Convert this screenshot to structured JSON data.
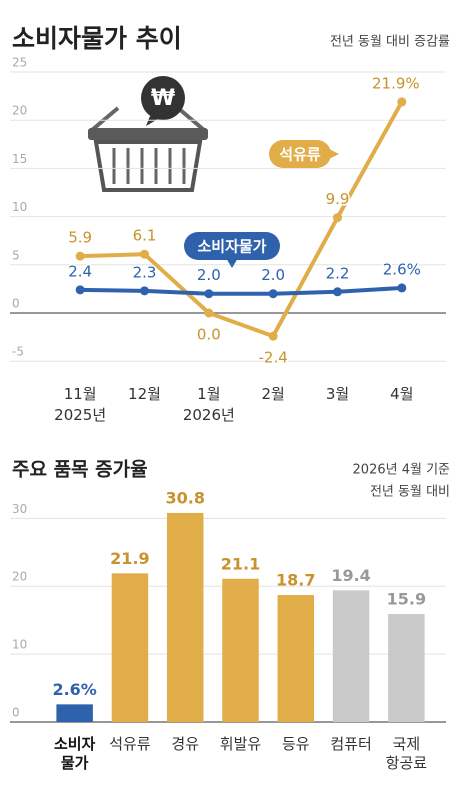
{
  "chart_data": [
    {
      "type": "line",
      "title": "소비자물가 추이",
      "subtitle": "전년 동월 대비 증감률",
      "categories": [
        "11월",
        "12월",
        "1월",
        "2월",
        "3월",
        "4월"
      ],
      "category_years": [
        "2025년",
        null,
        "2026년",
        null,
        null,
        null
      ],
      "series": [
        {
          "name": "석유류",
          "color": "#e1ad48",
          "values": [
            5.9,
            6.1,
            0.0,
            -2.4,
            9.9,
            21.9
          ],
          "value_labels": [
            "5.9",
            "6.1",
            "0.0",
            "-2.4",
            "9.9",
            "21.9%"
          ]
        },
        {
          "name": "소비자물가",
          "color": "#2f62ad",
          "values": [
            2.4,
            2.3,
            2.0,
            2.0,
            2.2,
            2.6
          ],
          "value_labels": [
            "2.4",
            "2.3",
            "2.0",
            "2.0",
            "2.2",
            "2.6%"
          ]
        }
      ],
      "ylim": [
        -6,
        26
      ],
      "yticks": [
        -5,
        0,
        5,
        10,
        15,
        20,
        25
      ],
      "grid": true
    },
    {
      "type": "bar",
      "title": "주요 품목 증가율",
      "subtitle": [
        "2026년 4월 기준",
        "전년 동월 대비"
      ],
      "categories": [
        "소비자\n물가",
        "석유류",
        "경유",
        "휘발유",
        "등유",
        "컴퓨터",
        "국제\n항공료"
      ],
      "values": [
        2.6,
        21.9,
        30.8,
        21.1,
        18.7,
        19.4,
        15.9
      ],
      "value_labels": [
        "2.6%",
        "21.9",
        "30.8",
        "21.1",
        "18.7",
        "19.4",
        "15.9"
      ],
      "colors": [
        "#2f62ad",
        "#e1ad48",
        "#e1ad48",
        "#e1ad48",
        "#e1ad48",
        "#c9c9c9",
        "#c9c9c9"
      ],
      "ylim": [
        0,
        33
      ],
      "yticks": [
        0,
        10,
        20,
        30
      ],
      "grid": true
    }
  ]
}
